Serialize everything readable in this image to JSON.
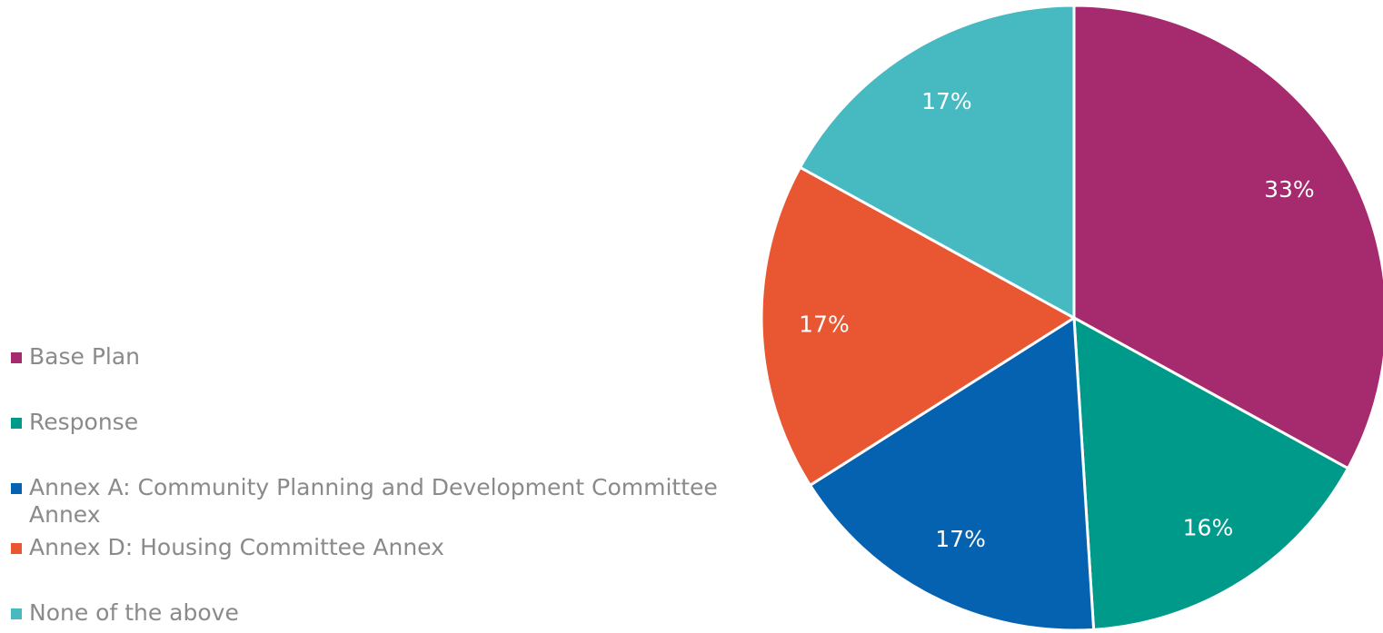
{
  "chart_data": {
    "type": "pie",
    "categories": [
      "Base Plan",
      "Response",
      "Annex A: Community Planning and Development Committee Annex",
      "Annex D: Housing Committee Annex",
      "None of the above"
    ],
    "values": [
      33,
      16,
      17,
      17,
      17
    ],
    "value_labels": [
      "33%",
      "16%",
      "17%",
      "17%",
      "17%"
    ],
    "colors": [
      "#a62a6e",
      "#009a8a",
      "#0562b0",
      "#e85731",
      "#47b9c1"
    ]
  }
}
